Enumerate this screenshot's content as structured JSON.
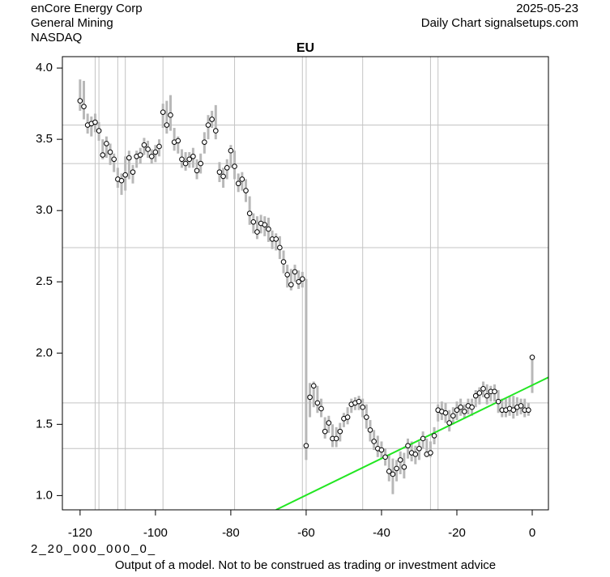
{
  "chart_data": {
    "type": "hlc",
    "company": "enCore Energy Corp",
    "sector": "General Mining",
    "exchange": "NASDAQ",
    "date": "2025-05-23",
    "source": "Daily Chart signalsetups.com",
    "title": "EU",
    "code": "2_20_000_000_0_",
    "disclaimer": "Output of a model. Not to be construed as trading or investment advice",
    "bar_color": "#b8b8b8",
    "grid_color": "#c4c4c4",
    "trend_color": "#22e622",
    "xlim": [
      -124.7,
      4.3
    ],
    "ylim": [
      0.9,
      4.08
    ],
    "xticks": [
      -120,
      -100,
      -80,
      -60,
      -40,
      -20,
      0
    ],
    "yticks": [
      {
        "value": 1,
        "label": "1.0"
      },
      1.5,
      {
        "value": 2,
        "label": "2.0"
      },
      2.5,
      {
        "value": 3,
        "label": "3.0"
      },
      3.5,
      {
        "value": 4,
        "label": "4.0"
      }
    ],
    "xgrid": [
      -116,
      -115,
      -110,
      -108,
      -98,
      -79,
      -61,
      -60,
      -45,
      -27,
      -25
    ],
    "hlines": [
      3.6,
      3.33,
      2.74,
      1.65,
      1.33
    ],
    "trendline": {
      "x": [
        -68,
        4.3
      ],
      "y": [
        0.9,
        1.83
      ]
    },
    "x": [
      -120,
      -119,
      -118,
      -117,
      -116,
      -115,
      -114,
      -113,
      -112,
      -111,
      -110,
      -109,
      -108,
      -107,
      -106,
      -105,
      -104,
      -103,
      -102,
      -101,
      -100,
      -99,
      -98,
      -97,
      -96,
      -95,
      -94,
      -93,
      -92,
      -91,
      -90,
      -89,
      -88,
      -87,
      -86,
      -85,
      -84,
      -83,
      -82,
      -81,
      -80,
      -79,
      -78,
      -77,
      -76,
      -75,
      -74,
      -73,
      -72,
      -71,
      -70,
      -69,
      -68,
      -67,
      -66,
      -65,
      -64,
      -63,
      -62,
      -61,
      -60,
      -59,
      -58,
      -57,
      -56,
      -55,
      -54,
      -53,
      -52,
      -51,
      -50,
      -49,
      -48,
      -47,
      -46,
      -45,
      -44,
      -43,
      -42,
      -41,
      -40,
      -39,
      -38,
      -37,
      -36,
      -35,
      -34,
      -33,
      -32,
      -31,
      -30,
      -29,
      -28,
      -27,
      -26,
      -25,
      -24,
      -23,
      -22,
      -21,
      -20,
      -19,
      -18,
      -17,
      -16,
      -15,
      -14,
      -13,
      -12,
      -11,
      -10,
      -9,
      -8,
      -7,
      -6,
      -5,
      -4,
      -3,
      -2,
      -1,
      0
    ],
    "high": [
      3.92,
      3.91,
      3.68,
      3.66,
      3.68,
      3.62,
      3.5,
      3.52,
      3.47,
      3.4,
      3.3,
      3.26,
      3.38,
      3.42,
      3.32,
      3.42,
      3.44,
      3.51,
      3.49,
      3.43,
      3.46,
      3.5,
      3.75,
      3.77,
      3.81,
      3.58,
      3.52,
      3.43,
      3.41,
      3.41,
      3.44,
      3.36,
      3.4,
      3.55,
      3.67,
      3.7,
      3.74,
      3.34,
      3.3,
      3.36,
      3.46,
      3.42,
      3.26,
      3.27,
      3.22,
      3.1,
      2.98,
      2.96,
      2.97,
      2.96,
      2.95,
      2.86,
      2.84,
      2.82,
      2.72,
      2.62,
      2.59,
      2.62,
      2.58,
      2.57,
      2.52,
      1.79,
      1.8,
      1.77,
      1.68,
      1.55,
      1.56,
      1.5,
      1.48,
      1.51,
      1.58,
      1.62,
      1.68,
      1.69,
      1.7,
      1.68,
      1.64,
      1.53,
      1.46,
      1.42,
      1.38,
      1.33,
      1.29,
      1.26,
      1.25,
      1.31,
      1.3,
      1.4,
      1.38,
      1.35,
      1.38,
      1.45,
      1.4,
      1.38,
      1.48,
      1.64,
      1.66,
      1.65,
      1.6,
      1.62,
      1.66,
      1.68,
      1.64,
      1.68,
      1.68,
      1.74,
      1.76,
      1.8,
      1.78,
      1.77,
      1.78,
      1.74,
      1.68,
      1.68,
      1.7,
      1.7,
      1.69,
      1.68,
      1.68,
      1.65,
      1.97
    ],
    "low": [
      3.7,
      3.64,
      3.54,
      3.52,
      3.55,
      3.49,
      3.36,
      3.37,
      3.32,
      3.27,
      3.16,
      3.11,
      3.14,
      3.22,
      3.19,
      3.3,
      3.33,
      3.39,
      3.37,
      3.33,
      3.34,
      3.38,
      3.58,
      3.54,
      3.56,
      3.42,
      3.4,
      3.3,
      3.28,
      3.3,
      3.3,
      3.22,
      3.26,
      3.4,
      3.5,
      3.58,
      3.5,
      3.2,
      3.16,
      3.22,
      3.3,
      3.22,
      3.13,
      3.14,
      3.06,
      2.9,
      2.84,
      2.8,
      2.84,
      2.82,
      2.78,
      2.73,
      2.72,
      2.66,
      2.56,
      2.46,
      2.44,
      2.5,
      2.45,
      2.46,
      1.25,
      1.55,
      1.62,
      1.58,
      1.55,
      1.4,
      1.44,
      1.34,
      1.34,
      1.38,
      1.48,
      1.5,
      1.58,
      1.6,
      1.6,
      1.55,
      1.47,
      1.38,
      1.32,
      1.27,
      1.26,
      1.21,
      1.1,
      1.01,
      1.1,
      1.15,
      1.12,
      1.26,
      1.24,
      1.22,
      1.25,
      1.33,
      1.27,
      1.27,
      1.36,
      1.52,
      1.53,
      1.51,
      1.45,
      1.5,
      1.53,
      1.56,
      1.54,
      1.57,
      1.56,
      1.62,
      1.64,
      1.69,
      1.64,
      1.66,
      1.66,
      1.58,
      1.55,
      1.55,
      1.56,
      1.54,
      1.56,
      1.57,
      1.55,
      1.56,
      1.72
    ],
    "close": [
      3.77,
      3.73,
      3.6,
      3.61,
      3.62,
      3.56,
      3.39,
      3.47,
      3.41,
      3.36,
      3.22,
      3.21,
      3.25,
      3.37,
      3.27,
      3.38,
      3.39,
      3.46,
      3.43,
      3.38,
      3.41,
      3.45,
      3.69,
      3.6,
      3.67,
      3.48,
      3.49,
      3.36,
      3.33,
      3.36,
      3.38,
      3.28,
      3.33,
      3.48,
      3.6,
      3.64,
      3.56,
      3.27,
      3.24,
      3.3,
      3.42,
      3.31,
      3.19,
      3.22,
      3.14,
      2.98,
      2.92,
      2.85,
      2.91,
      2.9,
      2.87,
      2.8,
      2.8,
      2.74,
      2.64,
      2.55,
      2.48,
      2.57,
      2.5,
      2.52,
      1.35,
      1.69,
      1.77,
      1.65,
      1.61,
      1.45,
      1.51,
      1.4,
      1.4,
      1.45,
      1.54,
      1.55,
      1.64,
      1.65,
      1.66,
      1.62,
      1.55,
      1.46,
      1.38,
      1.33,
      1.32,
      1.27,
      1.17,
      1.15,
      1.19,
      1.25,
      1.2,
      1.35,
      1.3,
      1.29,
      1.33,
      1.4,
      1.29,
      1.3,
      1.42,
      1.6,
      1.59,
      1.58,
      1.51,
      1.56,
      1.6,
      1.62,
      1.59,
      1.63,
      1.62,
      1.7,
      1.72,
      1.75,
      1.7,
      1.73,
      1.73,
      1.66,
      1.6,
      1.6,
      1.61,
      1.6,
      1.62,
      1.63,
      1.6,
      1.6,
      1.97
    ]
  }
}
